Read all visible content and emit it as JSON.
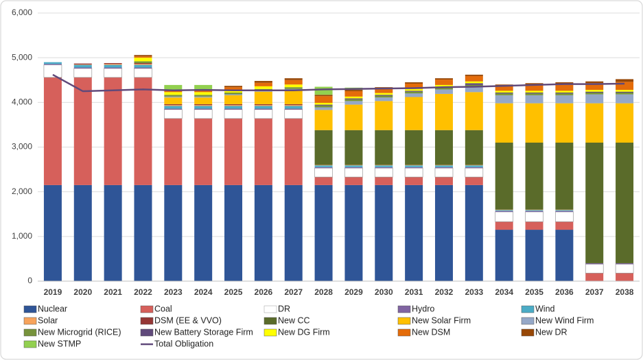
{
  "chart_data": {
    "type": "bar",
    "stacked": true,
    "categories": [
      "2019",
      "2020",
      "2021",
      "2022",
      "2023",
      "2024",
      "2025",
      "2026",
      "2027",
      "2028",
      "2029",
      "2030",
      "2031",
      "2032",
      "2033",
      "2034",
      "2035",
      "2036",
      "2037",
      "2038"
    ],
    "ylim": [
      0,
      6000
    ],
    "yticks": [
      0,
      {
        "value": 1000,
        "label": "1,000"
      },
      {
        "value": 2000,
        "label": "2,000"
      },
      {
        "value": 3000,
        "label": "3,000"
      },
      {
        "value": 4000,
        "label": "4,000"
      },
      {
        "value": 5000,
        "label": "5,000"
      },
      {
        "value": 6000,
        "label": "6,000"
      }
    ],
    "grid": true,
    "legend": "bottom",
    "series": [
      {
        "name": "Nuclear",
        "color": "#2f5597",
        "values": [
          2150,
          2150,
          2150,
          2150,
          2150,
          2150,
          2150,
          2150,
          2150,
          2150,
          2150,
          2150,
          2150,
          2150,
          2150,
          1150,
          1150,
          1150,
          0,
          0
        ]
      },
      {
        "name": "Coal",
        "color": "#d6605b",
        "values": [
          2410,
          2410,
          2410,
          2410,
          1490,
          1490,
          1490,
          1490,
          1490,
          180,
          180,
          180,
          180,
          180,
          180,
          180,
          180,
          180,
          180,
          180
        ]
      },
      {
        "name": "DR",
        "color": "#ffffff",
        "values": [
          280,
          200,
          200,
          200,
          200,
          200,
          200,
          200,
          200,
          200,
          200,
          200,
          200,
          200,
          200,
          220,
          220,
          220,
          200,
          200
        ]
      },
      {
        "name": "Hydro",
        "color": "#8064a2",
        "values": [
          20,
          20,
          20,
          20,
          20,
          20,
          20,
          20,
          20,
          20,
          20,
          20,
          20,
          20,
          20,
          20,
          20,
          20,
          20,
          20
        ]
      },
      {
        "name": "Wind",
        "color": "#4bacc6",
        "values": [
          40,
          60,
          60,
          60,
          60,
          60,
          60,
          60,
          60,
          40,
          40,
          40,
          40,
          40,
          40,
          20,
          20,
          20,
          0,
          0
        ]
      },
      {
        "name": "Solar",
        "color": "#f7a35c",
        "values": [
          0,
          10,
          20,
          20,
          20,
          20,
          20,
          20,
          20,
          10,
          10,
          10,
          10,
          10,
          10,
          10,
          10,
          10,
          0,
          0
        ]
      },
      {
        "name": "DSM (EE & VVO)",
        "color": "#953735",
        "values": [
          0,
          20,
          20,
          20,
          20,
          20,
          20,
          20,
          20,
          0,
          0,
          0,
          0,
          0,
          0,
          0,
          0,
          0,
          0,
          0
        ]
      },
      {
        "name": "New CC",
        "color": "#5a6b2a",
        "values": [
          0,
          0,
          0,
          0,
          0,
          0,
          0,
          0,
          0,
          780,
          780,
          780,
          780,
          780,
          780,
          1500,
          1500,
          1500,
          2700,
          2700
        ]
      },
      {
        "name": "New Solar Firm",
        "color": "#ffc000",
        "values": [
          0,
          0,
          0,
          0,
          150,
          150,
          200,
          280,
          320,
          450,
          570,
          650,
          740,
          810,
          850,
          880,
          880,
          880,
          880,
          880
        ]
      },
      {
        "name": "New Wind Firm",
        "color": "#95a8c8",
        "values": [
          0,
          0,
          0,
          0,
          20,
          20,
          20,
          20,
          20,
          60,
          80,
          80,
          80,
          100,
          120,
          180,
          180,
          180,
          200,
          200
        ]
      },
      {
        "name": "New Microgrid (RICE)",
        "color": "#77933c",
        "values": [
          0,
          0,
          0,
          40,
          40,
          40,
          40,
          40,
          40,
          40,
          40,
          40,
          40,
          40,
          40,
          40,
          40,
          40,
          40,
          40
        ]
      },
      {
        "name": "New Battery Storage Firm",
        "color": "#604a7b",
        "values": [
          0,
          0,
          0,
          0,
          0,
          0,
          0,
          0,
          0,
          20,
          20,
          20,
          20,
          20,
          40,
          20,
          20,
          20,
          20,
          20
        ]
      },
      {
        "name": "New DG Firm",
        "color": "#ffff00",
        "values": [
          0,
          0,
          0,
          80,
          60,
          60,
          60,
          60,
          60,
          40,
          40,
          40,
          40,
          40,
          40,
          40,
          40,
          40,
          40,
          40
        ]
      },
      {
        "name": "New DSM",
        "color": "#e46c0a",
        "values": [
          0,
          0,
          0,
          30,
          30,
          30,
          60,
          80,
          100,
          150,
          120,
          100,
          120,
          120,
          120,
          100,
          130,
          150,
          150,
          180
        ]
      },
      {
        "name": "New DR",
        "color": "#974706",
        "values": [
          0,
          0,
          0,
          30,
          0,
          0,
          30,
          40,
          40,
          30,
          30,
          30,
          30,
          30,
          30,
          40,
          40,
          40,
          40,
          60
        ]
      },
      {
        "name": "New STMP",
        "color": "#92d050",
        "values": [
          0,
          0,
          0,
          0,
          130,
          130,
          0,
          0,
          0,
          180,
          50,
          0,
          0,
          0,
          0,
          0,
          0,
          0,
          0,
          0
        ]
      },
      {
        "name": "Total Obligation",
        "color": "#60497a",
        "type": "line",
        "values": [
          4620,
          4250,
          4270,
          4290,
          4270,
          4280,
          4270,
          4270,
          4270,
          4290,
          4300,
          4310,
          4320,
          4340,
          4350,
          4370,
          4390,
          4410,
          4410,
          4420
        ]
      }
    ]
  }
}
